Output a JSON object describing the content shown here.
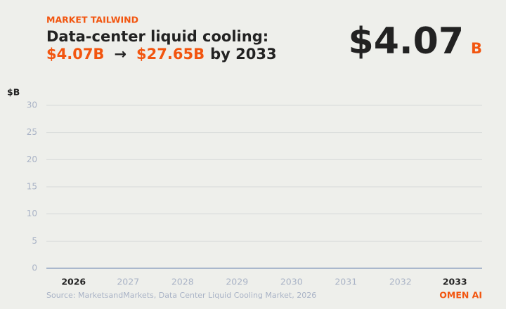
{
  "header": {
    "eyebrow": "MARKET TAILWIND",
    "title_lead": "Data-center liquid cooling:",
    "from_value": "$4.07B",
    "arrow": "→",
    "to_value": "$27.65B",
    "title_tail": "by 2033",
    "big_number": "$4.07",
    "big_unit": "B"
  },
  "chart_data": {
    "type": "bar",
    "y_label": "$B",
    "categories": [
      "2026",
      "2027",
      "2028",
      "2029",
      "2030",
      "2031",
      "2032",
      "2033"
    ],
    "highlight": [
      0,
      7
    ],
    "ylim": [
      0,
      30
    ],
    "yticks": [
      0,
      5,
      10,
      15,
      20,
      25,
      30
    ],
    "grid": true
  },
  "footer": {
    "source": "Source: MarketsandMarkets, Data Center Liquid Cooling Market, 2026",
    "brand": "OMEN AI"
  }
}
